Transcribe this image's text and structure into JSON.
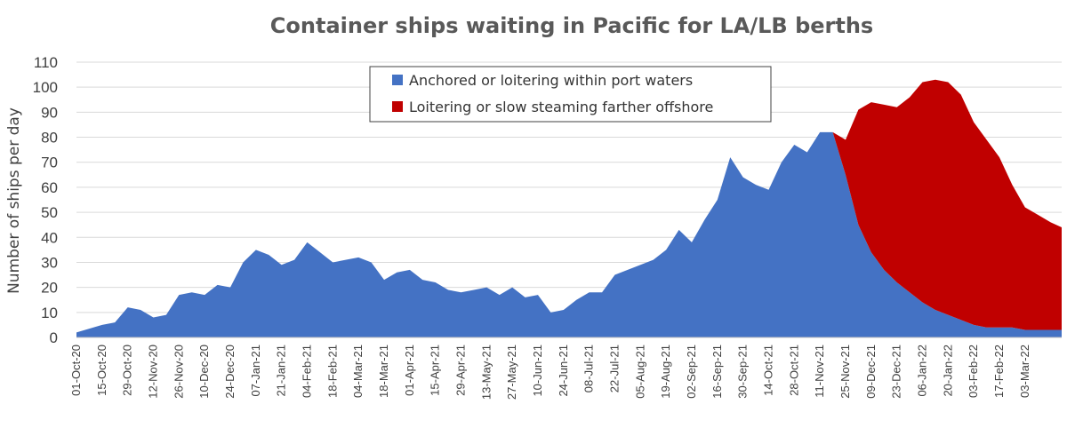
{
  "chart_data": {
    "type": "area",
    "stacked": true,
    "title": "Container ships waiting in Pacific for LA/LB berths",
    "xlabel": "",
    "ylabel": "Number of ships per day",
    "ylim": [
      0,
      110
    ],
    "yticks": [
      0,
      10,
      20,
      30,
      40,
      50,
      60,
      70,
      80,
      90,
      100,
      110
    ],
    "grid": true,
    "legend_position": "top-center",
    "x_tick_labels": [
      "01-Oct-20",
      "15-Oct-20",
      "29-Oct-20",
      "12-Nov-20",
      "26-Nov-20",
      "10-Dec-20",
      "24-Dec-20",
      "07-Jan-21",
      "21-Jan-21",
      "04-Feb-21",
      "18-Feb-21",
      "04-Mar-21",
      "18-Mar-21",
      "01-Apr-21",
      "15-Apr-21",
      "29-Apr-21",
      "13-May-21",
      "27-May-21",
      "10-Jun-21",
      "24-Jun-21",
      "08-Jul-21",
      "22-Jul-21",
      "05-Aug-21",
      "19-Aug-21",
      "02-Sep-21",
      "16-Sep-21",
      "30-Sep-21",
      "14-Oct-21",
      "28-Oct-21",
      "11-Nov-21",
      "25-Nov-21",
      "09-Dec-21",
      "23-Dec-21",
      "06-Jan-22",
      "20-Jan-22",
      "03-Feb-22",
      "17-Feb-22",
      "03-Mar-22"
    ],
    "x_tick_day_offsets": [
      0,
      14,
      28,
      42,
      56,
      70,
      84,
      98,
      112,
      126,
      140,
      154,
      168,
      182,
      196,
      210,
      224,
      238,
      252,
      266,
      280,
      294,
      308,
      322,
      336,
      350,
      364,
      378,
      392,
      406,
      420,
      434,
      448,
      462,
      476,
      490,
      504,
      518
    ],
    "x_range_days": [
      0,
      538
    ],
    "series": [
      {
        "name": "Anchored or loitering within port waters",
        "color": "#4472c4",
        "points": [
          [
            0,
            2
          ],
          [
            14,
            5
          ],
          [
            21,
            6
          ],
          [
            28,
            12
          ],
          [
            35,
            11
          ],
          [
            42,
            8
          ],
          [
            49,
            9
          ],
          [
            56,
            17
          ],
          [
            63,
            18
          ],
          [
            70,
            17
          ],
          [
            77,
            21
          ],
          [
            84,
            20
          ],
          [
            91,
            30
          ],
          [
            98,
            35
          ],
          [
            105,
            33
          ],
          [
            112,
            29
          ],
          [
            119,
            31
          ],
          [
            126,
            38
          ],
          [
            133,
            34
          ],
          [
            140,
            30
          ],
          [
            147,
            31
          ],
          [
            154,
            32
          ],
          [
            161,
            30
          ],
          [
            168,
            23
          ],
          [
            175,
            26
          ],
          [
            182,
            27
          ],
          [
            189,
            23
          ],
          [
            196,
            22
          ],
          [
            203,
            19
          ],
          [
            210,
            18
          ],
          [
            217,
            19
          ],
          [
            224,
            20
          ],
          [
            231,
            17
          ],
          [
            238,
            20
          ],
          [
            245,
            16
          ],
          [
            252,
            17
          ],
          [
            259,
            10
          ],
          [
            266,
            11
          ],
          [
            273,
            15
          ],
          [
            280,
            18
          ],
          [
            287,
            18
          ],
          [
            294,
            25
          ],
          [
            301,
            27
          ],
          [
            308,
            29
          ],
          [
            315,
            31
          ],
          [
            322,
            35
          ],
          [
            329,
            43
          ],
          [
            336,
            38
          ],
          [
            343,
            47
          ],
          [
            350,
            55
          ],
          [
            357,
            72
          ],
          [
            364,
            64
          ],
          [
            371,
            61
          ],
          [
            378,
            59
          ],
          [
            385,
            70
          ],
          [
            392,
            77
          ],
          [
            399,
            74
          ],
          [
            406,
            82
          ],
          [
            413,
            82
          ],
          [
            420,
            65
          ],
          [
            427,
            45
          ],
          [
            434,
            34
          ],
          [
            441,
            27
          ],
          [
            448,
            22
          ],
          [
            455,
            18
          ],
          [
            462,
            14
          ],
          [
            469,
            11
          ],
          [
            476,
            9
          ],
          [
            483,
            7
          ],
          [
            490,
            5
          ],
          [
            497,
            4
          ],
          [
            504,
            4
          ],
          [
            511,
            4
          ],
          [
            518,
            3
          ],
          [
            525,
            3
          ],
          [
            532,
            3
          ],
          [
            538,
            3
          ]
        ]
      },
      {
        "name": "Loitering or slow steaming farther offshore",
        "color": "#c00000",
        "points": [
          [
            0,
            0
          ],
          [
            406,
            0
          ],
          [
            413,
            0
          ],
          [
            420,
            14
          ],
          [
            427,
            46
          ],
          [
            434,
            60
          ],
          [
            441,
            66
          ],
          [
            448,
            70
          ],
          [
            455,
            78
          ],
          [
            462,
            88
          ],
          [
            469,
            92
          ],
          [
            476,
            93
          ],
          [
            483,
            90
          ],
          [
            490,
            81
          ],
          [
            497,
            75
          ],
          [
            504,
            68
          ],
          [
            511,
            57
          ],
          [
            518,
            49
          ],
          [
            525,
            46
          ],
          [
            532,
            43
          ],
          [
            538,
            41
          ]
        ]
      }
    ]
  }
}
